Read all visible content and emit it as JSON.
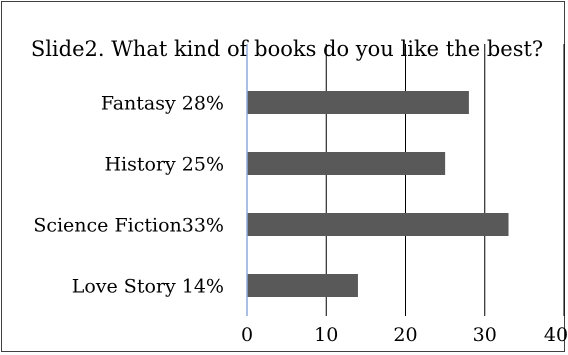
{
  "chart_data": {
    "type": "bar",
    "orientation": "horizontal",
    "title": "Slide2. What kind of books do you like the best?",
    "categories": [
      "Fantasy 28%",
      "History 25%",
      "Science Fiction33%",
      "Love Story 14%"
    ],
    "values": [
      28,
      25,
      33,
      14
    ],
    "xlim": [
      0,
      40
    ],
    "xticks": [
      "0",
      "10",
      "20",
      "30",
      "40"
    ],
    "xlabel": "",
    "ylabel": "",
    "grid": "vertical",
    "legend": "none",
    "colors": {
      "bar": "#595959",
      "gridline": "#000000",
      "axis": "#8eaadb"
    }
  }
}
